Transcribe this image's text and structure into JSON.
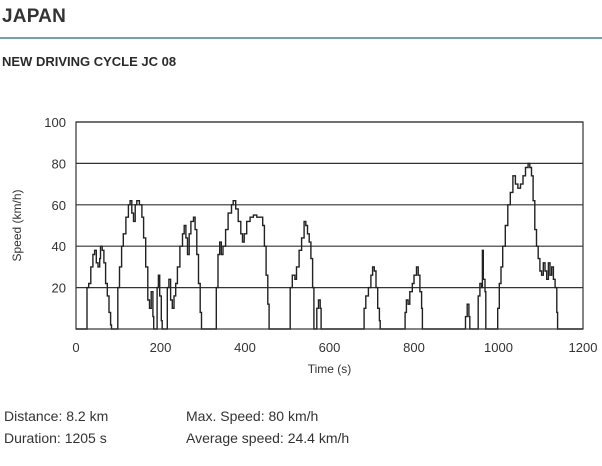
{
  "header": {
    "region": "JAPAN",
    "cycle_title": "NEW DRIVING CYCLE JC 08"
  },
  "stats": {
    "distance": "Distance: 8.2 km",
    "duration": "Duration: 1205 s",
    "max_speed": "Max. Speed: 80 km/h",
    "average_speed": "Average speed: 24.4 km/h"
  },
  "colors": {
    "divider": "#6fa3a8",
    "trace": "#222222",
    "grid": "#333333"
  },
  "chart_data": {
    "type": "line",
    "title": "NEW DRIVING CYCLE JC 08",
    "xlabel": "Time (s)",
    "ylabel": "Speed (km/h)",
    "xlim": [
      0,
      1205
    ],
    "ylim": [
      0,
      100
    ],
    "xticks": [
      0,
      200,
      400,
      600,
      800,
      1000,
      1200
    ],
    "yticks": [
      20,
      40,
      60,
      80,
      100
    ],
    "grid": "horizontal",
    "series": [
      {
        "name": "Speed",
        "points": [
          [
            0,
            0
          ],
          [
            25,
            0
          ],
          [
            26,
            20
          ],
          [
            30,
            22
          ],
          [
            35,
            30
          ],
          [
            40,
            36
          ],
          [
            44,
            38
          ],
          [
            48,
            32
          ],
          [
            52,
            30
          ],
          [
            56,
            34
          ],
          [
            58,
            40
          ],
          [
            62,
            38
          ],
          [
            66,
            32
          ],
          [
            70,
            22
          ],
          [
            74,
            16
          ],
          [
            78,
            8
          ],
          [
            82,
            2
          ],
          [
            84,
            0
          ],
          [
            98,
            0
          ],
          [
            99,
            20
          ],
          [
            103,
            30
          ],
          [
            108,
            40
          ],
          [
            112,
            46
          ],
          [
            118,
            54
          ],
          [
            124,
            60
          ],
          [
            128,
            62
          ],
          [
            132,
            56
          ],
          [
            136,
            52
          ],
          [
            140,
            60
          ],
          [
            144,
            62
          ],
          [
            150,
            60
          ],
          [
            156,
            54
          ],
          [
            160,
            44
          ],
          [
            165,
            30
          ],
          [
            170,
            14
          ],
          [
            174,
            10
          ],
          [
            178,
            18
          ],
          [
            182,
            6
          ],
          [
            184,
            0
          ],
          [
            190,
            0
          ],
          [
            192,
            20
          ],
          [
            195,
            26
          ],
          [
            198,
            16
          ],
          [
            202,
            4
          ],
          [
            204,
            0
          ],
          [
            214,
            0
          ],
          [
            216,
            20
          ],
          [
            220,
            24
          ],
          [
            224,
            14
          ],
          [
            228,
            10
          ],
          [
            232,
            16
          ],
          [
            236,
            22
          ],
          [
            240,
            30
          ],
          [
            246,
            40
          ],
          [
            252,
            46
          ],
          [
            256,
            50
          ],
          [
            260,
            44
          ],
          [
            264,
            36
          ],
          [
            268,
            46
          ],
          [
            272,
            52
          ],
          [
            278,
            54
          ],
          [
            282,
            48
          ],
          [
            286,
            36
          ],
          [
            290,
            22
          ],
          [
            294,
            8
          ],
          [
            297,
            0
          ],
          [
            330,
            0
          ],
          [
            332,
            20
          ],
          [
            336,
            36
          ],
          [
            340,
            42
          ],
          [
            344,
            36
          ],
          [
            348,
            40
          ],
          [
            354,
            48
          ],
          [
            360,
            56
          ],
          [
            368,
            60
          ],
          [
            372,
            62
          ],
          [
            378,
            58
          ],
          [
            384,
            52
          ],
          [
            390,
            46
          ],
          [
            394,
            42
          ],
          [
            398,
            46
          ],
          [
            404,
            52
          ],
          [
            412,
            54
          ],
          [
            420,
            55
          ],
          [
            428,
            54
          ],
          [
            436,
            54
          ],
          [
            442,
            50
          ],
          [
            446,
            40
          ],
          [
            450,
            26
          ],
          [
            454,
            12
          ],
          [
            457,
            0
          ],
          [
            505,
            0
          ],
          [
            507,
            20
          ],
          [
            512,
            26
          ],
          [
            518,
            24
          ],
          [
            522,
            30
          ],
          [
            528,
            38
          ],
          [
            534,
            44
          ],
          [
            540,
            52
          ],
          [
            544,
            50
          ],
          [
            548,
            46
          ],
          [
            552,
            42
          ],
          [
            556,
            34
          ],
          [
            560,
            20
          ],
          [
            563,
            0
          ],
          [
            568,
            0
          ],
          [
            570,
            10
          ],
          [
            574,
            14
          ],
          [
            578,
            10
          ],
          [
            580,
            0
          ],
          [
            680,
            0
          ],
          [
            682,
            10
          ],
          [
            686,
            16
          ],
          [
            692,
            20
          ],
          [
            698,
            26
          ],
          [
            702,
            30
          ],
          [
            706,
            28
          ],
          [
            710,
            20
          ],
          [
            714,
            10
          ],
          [
            718,
            4
          ],
          [
            720,
            0
          ],
          [
            777,
            0
          ],
          [
            779,
            8
          ],
          [
            782,
            14
          ],
          [
            786,
            12
          ],
          [
            790,
            18
          ],
          [
            796,
            22
          ],
          [
            800,
            26
          ],
          [
            806,
            30
          ],
          [
            810,
            26
          ],
          [
            814,
            18
          ],
          [
            818,
            10
          ],
          [
            820,
            0
          ],
          [
            920,
            0
          ],
          [
            922,
            6
          ],
          [
            926,
            12
          ],
          [
            930,
            6
          ],
          [
            932,
            0
          ],
          [
            950,
            0
          ],
          [
            952,
            16
          ],
          [
            956,
            22
          ],
          [
            960,
            20
          ],
          [
            962,
            38
          ],
          [
            964,
            24
          ],
          [
            968,
            18
          ],
          [
            970,
            0
          ],
          [
            996,
            0
          ],
          [
            998,
            10
          ],
          [
            1002,
            22
          ],
          [
            1006,
            30
          ],
          [
            1010,
            40
          ],
          [
            1016,
            50
          ],
          [
            1022,
            60
          ],
          [
            1028,
            66
          ],
          [
            1034,
            74
          ],
          [
            1040,
            70
          ],
          [
            1046,
            68
          ],
          [
            1052,
            70
          ],
          [
            1058,
            74
          ],
          [
            1064,
            78
          ],
          [
            1070,
            80
          ],
          [
            1074,
            78
          ],
          [
            1078,
            74
          ],
          [
            1082,
            62
          ],
          [
            1086,
            48
          ],
          [
            1090,
            40
          ],
          [
            1094,
            34
          ],
          [
            1098,
            28
          ],
          [
            1102,
            26
          ],
          [
            1106,
            32
          ],
          [
            1110,
            28
          ],
          [
            1114,
            24
          ],
          [
            1118,
            32
          ],
          [
            1122,
            26
          ],
          [
            1126,
            30
          ],
          [
            1130,
            24
          ],
          [
            1134,
            20
          ],
          [
            1138,
            8
          ],
          [
            1140,
            0
          ],
          [
            1205,
            0
          ]
        ]
      }
    ]
  }
}
